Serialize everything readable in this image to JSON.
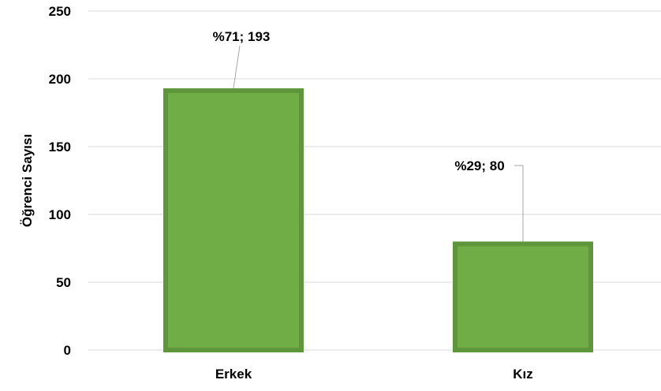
{
  "chart_data": {
    "type": "bar",
    "categories": [
      "Erkek",
      "Kız"
    ],
    "values": [
      193,
      80
    ],
    "data_labels": [
      "%71; 193",
      "%29; 80"
    ],
    "ylabel": "Öğrenci Sayısı",
    "xlabel": "",
    "ylim": [
      0,
      250
    ],
    "yticks": [
      0,
      50,
      100,
      150,
      200,
      250
    ],
    "grid": true,
    "legend": "none",
    "colors": {
      "bar_fill": "#70AD47",
      "bar_border": "#5F963B",
      "grid": "#D9D9D9",
      "leader": "#A6A6A6"
    }
  }
}
